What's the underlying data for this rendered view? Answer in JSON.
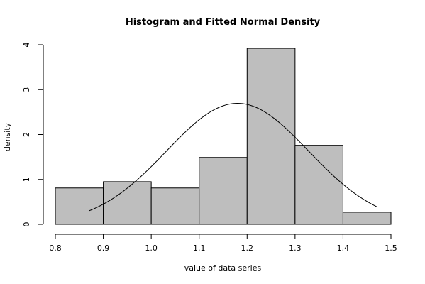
{
  "chart_data": {
    "type": "bar",
    "title": "Histogram and Fitted Normal Density",
    "xlabel": "value of data series",
    "ylabel": "density",
    "xlim": [
      0.8,
      1.5
    ],
    "ylim": [
      0,
      4
    ],
    "x_ticks": [
      "0.8",
      "0.9",
      "1.0",
      "1.1",
      "1.2",
      "1.3",
      "1.4",
      "1.5"
    ],
    "y_ticks": [
      "0",
      "1",
      "2",
      "3",
      "4"
    ],
    "bins": [
      {
        "start": 0.8,
        "end": 0.9,
        "density": 0.81
      },
      {
        "start": 0.9,
        "end": 1.0,
        "density": 0.95
      },
      {
        "start": 1.0,
        "end": 1.1,
        "density": 0.81
      },
      {
        "start": 1.1,
        "end": 1.2,
        "density": 1.49
      },
      {
        "start": 1.2,
        "end": 1.3,
        "density": 3.92
      },
      {
        "start": 1.3,
        "end": 1.4,
        "density": 1.76
      },
      {
        "start": 1.4,
        "end": 1.5,
        "density": 0.27
      }
    ],
    "fitted_normal": {
      "mean": 1.18,
      "sd": 0.148,
      "x_from": 0.87,
      "x_to": 1.47
    },
    "colors": {
      "bar_fill": "#bebebe",
      "bar_stroke": "#000000",
      "curve": "#000000"
    },
    "grid": false,
    "legend": "none"
  }
}
